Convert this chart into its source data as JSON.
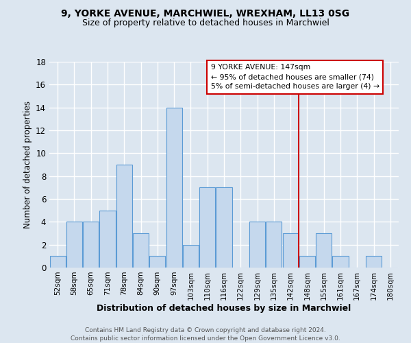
{
  "title": "9, YORKE AVENUE, MARCHWIEL, WREXHAM, LL13 0SG",
  "subtitle": "Size of property relative to detached houses in Marchwiel",
  "xlabel": "Distribution of detached houses by size in Marchwiel",
  "ylabel": "Number of detached properties",
  "categories": [
    "52sqm",
    "58sqm",
    "65sqm",
    "71sqm",
    "78sqm",
    "84sqm",
    "90sqm",
    "97sqm",
    "103sqm",
    "110sqm",
    "116sqm",
    "122sqm",
    "129sqm",
    "135sqm",
    "142sqm",
    "148sqm",
    "155sqm",
    "161sqm",
    "167sqm",
    "174sqm",
    "180sqm"
  ],
  "values": [
    1,
    4,
    4,
    5,
    9,
    3,
    1,
    14,
    2,
    7,
    7,
    0,
    4,
    4,
    3,
    1,
    3,
    1,
    0,
    1,
    0
  ],
  "bar_color": "#c5d8ed",
  "bar_edge_color": "#5b9bd5",
  "background_color": "#dce6f0",
  "plot_bg_color": "#dce6f0",
  "grid_color": "#ffffff",
  "vline_x": 14.5,
  "vline_color": "#cc0000",
  "annotation_text": "9 YORKE AVENUE: 147sqm\n← 95% of detached houses are smaller (74)\n5% of semi-detached houses are larger (4) →",
  "annotation_box_facecolor": "#ffffff",
  "annotation_box_edge": "#cc0000",
  "footer": "Contains HM Land Registry data © Crown copyright and database right 2024.\nContains public sector information licensed under the Open Government Licence v3.0.",
  "ylim": [
    0,
    18
  ],
  "yticks": [
    0,
    2,
    4,
    6,
    8,
    10,
    12,
    14,
    16,
    18
  ],
  "title_fontsize": 10,
  "subtitle_fontsize": 9
}
